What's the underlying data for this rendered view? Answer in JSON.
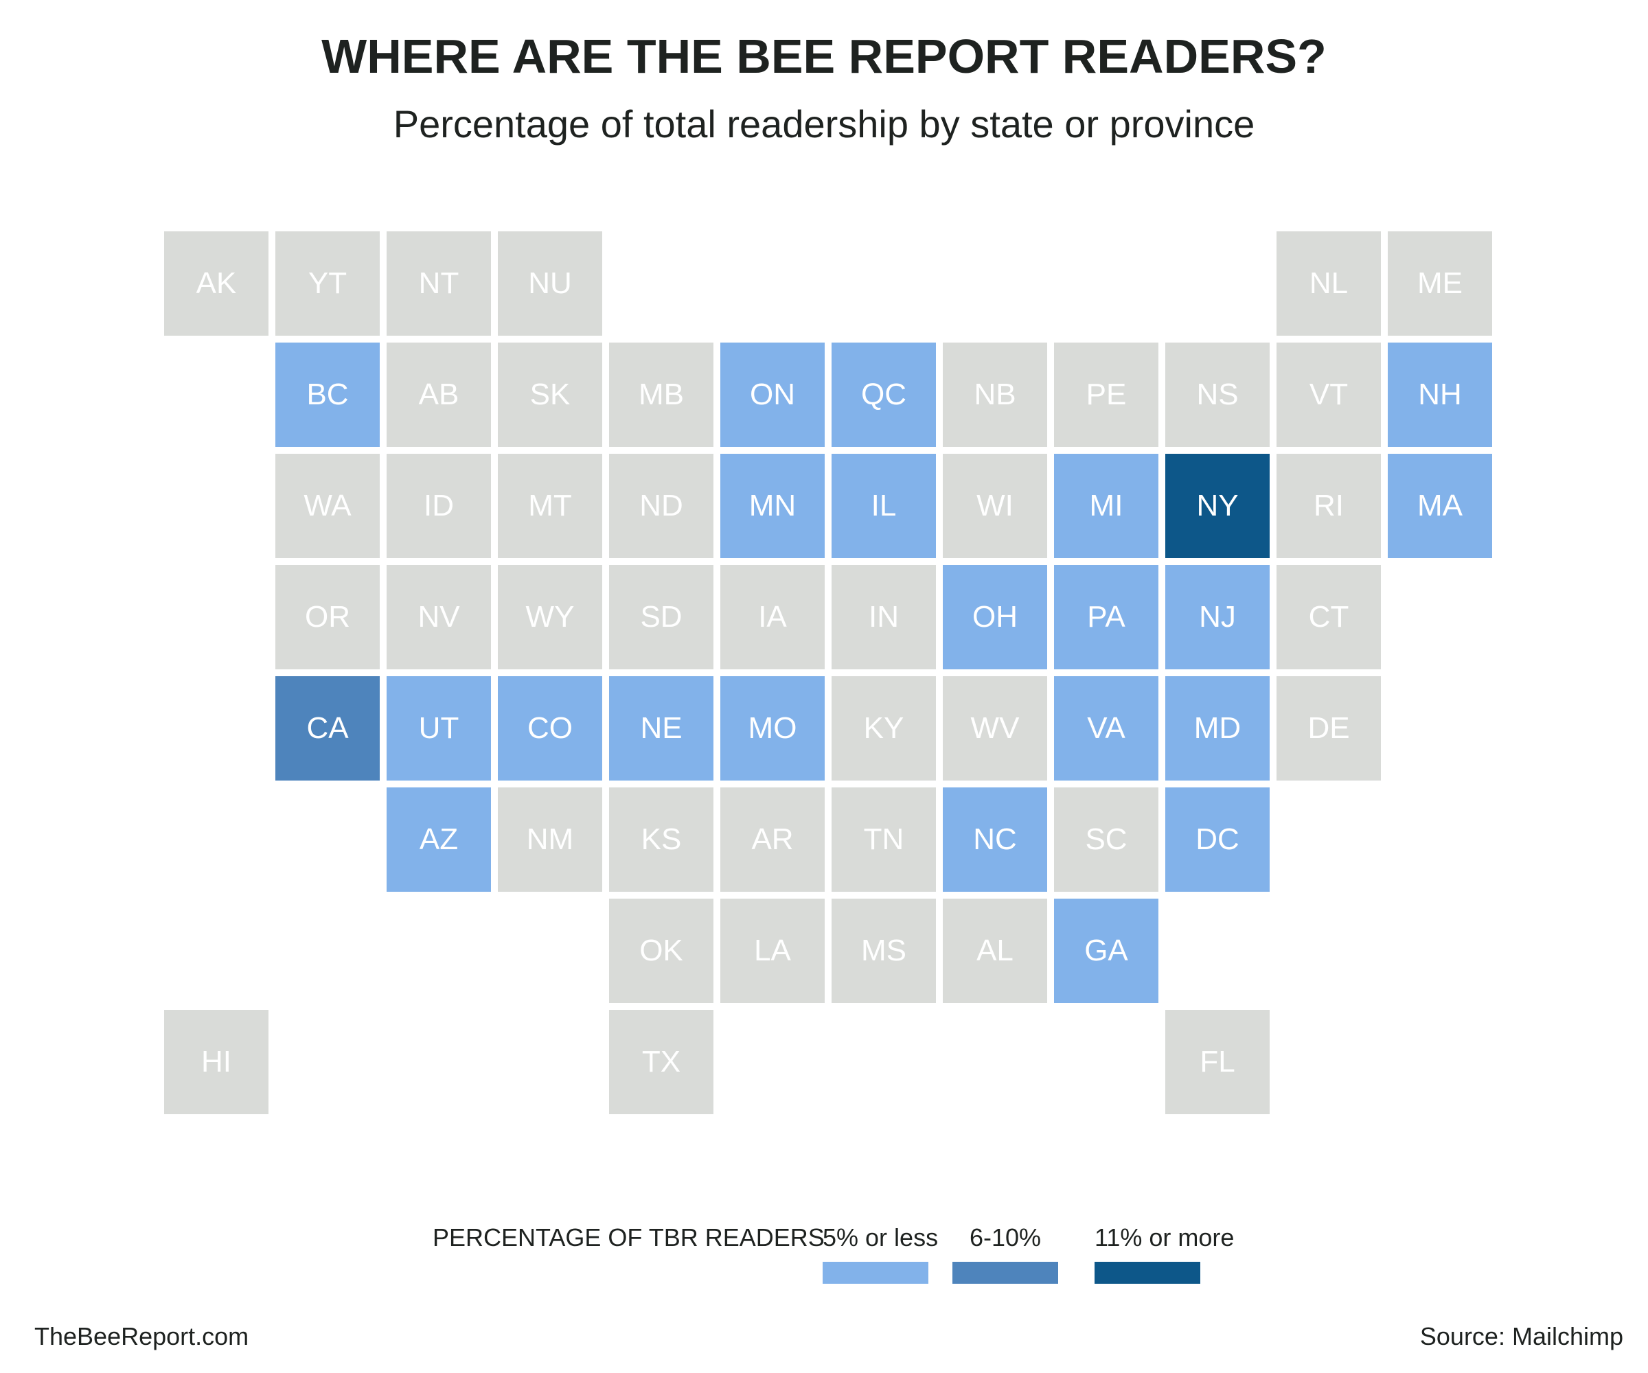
{
  "title": "WHERE ARE THE BEE REPORT READERS?",
  "subtitle": "Percentage of total readership by state or province",
  "colors": {
    "none": "#d9dbd8",
    "low": "#82b2ea",
    "mid": "#4e84bc",
    "high": "#0d5789"
  },
  "tiles": [
    {
      "code": "AK",
      "row": 0,
      "col": 0,
      "level": "none"
    },
    {
      "code": "YT",
      "row": 0,
      "col": 1,
      "level": "none"
    },
    {
      "code": "NT",
      "row": 0,
      "col": 2,
      "level": "none"
    },
    {
      "code": "NU",
      "row": 0,
      "col": 3,
      "level": "none"
    },
    {
      "code": "NL",
      "row": 0,
      "col": 10,
      "level": "none"
    },
    {
      "code": "ME",
      "row": 0,
      "col": 11,
      "level": "none"
    },
    {
      "code": "BC",
      "row": 1,
      "col": 1,
      "level": "low"
    },
    {
      "code": "AB",
      "row": 1,
      "col": 2,
      "level": "none"
    },
    {
      "code": "SK",
      "row": 1,
      "col": 3,
      "level": "none"
    },
    {
      "code": "MB",
      "row": 1,
      "col": 4,
      "level": "none"
    },
    {
      "code": "ON",
      "row": 1,
      "col": 5,
      "level": "low"
    },
    {
      "code": "QC",
      "row": 1,
      "col": 6,
      "level": "low"
    },
    {
      "code": "NB",
      "row": 1,
      "col": 7,
      "level": "none"
    },
    {
      "code": "PE",
      "row": 1,
      "col": 8,
      "level": "none"
    },
    {
      "code": "NS",
      "row": 1,
      "col": 9,
      "level": "none"
    },
    {
      "code": "VT",
      "row": 1,
      "col": 10,
      "level": "none"
    },
    {
      "code": "NH",
      "row": 1,
      "col": 11,
      "level": "low"
    },
    {
      "code": "WA",
      "row": 2,
      "col": 1,
      "level": "none"
    },
    {
      "code": "ID",
      "row": 2,
      "col": 2,
      "level": "none"
    },
    {
      "code": "MT",
      "row": 2,
      "col": 3,
      "level": "none"
    },
    {
      "code": "ND",
      "row": 2,
      "col": 4,
      "level": "none"
    },
    {
      "code": "MN",
      "row": 2,
      "col": 5,
      "level": "low"
    },
    {
      "code": "IL",
      "row": 2,
      "col": 6,
      "level": "low"
    },
    {
      "code": "WI",
      "row": 2,
      "col": 7,
      "level": "none"
    },
    {
      "code": "MI",
      "row": 2,
      "col": 8,
      "level": "low"
    },
    {
      "code": "NY",
      "row": 2,
      "col": 9,
      "level": "high"
    },
    {
      "code": "RI",
      "row": 2,
      "col": 10,
      "level": "none"
    },
    {
      "code": "MA",
      "row": 2,
      "col": 11,
      "level": "low"
    },
    {
      "code": "OR",
      "row": 3,
      "col": 1,
      "level": "none"
    },
    {
      "code": "NV",
      "row": 3,
      "col": 2,
      "level": "none"
    },
    {
      "code": "WY",
      "row": 3,
      "col": 3,
      "level": "none"
    },
    {
      "code": "SD",
      "row": 3,
      "col": 4,
      "level": "none"
    },
    {
      "code": "IA",
      "row": 3,
      "col": 5,
      "level": "none"
    },
    {
      "code": "IN",
      "row": 3,
      "col": 6,
      "level": "none"
    },
    {
      "code": "OH",
      "row": 3,
      "col": 7,
      "level": "low"
    },
    {
      "code": "PA",
      "row": 3,
      "col": 8,
      "level": "low"
    },
    {
      "code": "NJ",
      "row": 3,
      "col": 9,
      "level": "low"
    },
    {
      "code": "CT",
      "row": 3,
      "col": 10,
      "level": "none"
    },
    {
      "code": "CA",
      "row": 4,
      "col": 1,
      "level": "mid"
    },
    {
      "code": "UT",
      "row": 4,
      "col": 2,
      "level": "low"
    },
    {
      "code": "CO",
      "row": 4,
      "col": 3,
      "level": "low"
    },
    {
      "code": "NE",
      "row": 4,
      "col": 4,
      "level": "low"
    },
    {
      "code": "MO",
      "row": 4,
      "col": 5,
      "level": "low"
    },
    {
      "code": "KY",
      "row": 4,
      "col": 6,
      "level": "none"
    },
    {
      "code": "WV",
      "row": 4,
      "col": 7,
      "level": "none"
    },
    {
      "code": "VA",
      "row": 4,
      "col": 8,
      "level": "low"
    },
    {
      "code": "MD",
      "row": 4,
      "col": 9,
      "level": "low"
    },
    {
      "code": "DE",
      "row": 4,
      "col": 10,
      "level": "none"
    },
    {
      "code": "AZ",
      "row": 5,
      "col": 2,
      "level": "low"
    },
    {
      "code": "NM",
      "row": 5,
      "col": 3,
      "level": "none"
    },
    {
      "code": "KS",
      "row": 5,
      "col": 4,
      "level": "none"
    },
    {
      "code": "AR",
      "row": 5,
      "col": 5,
      "level": "none"
    },
    {
      "code": "TN",
      "row": 5,
      "col": 6,
      "level": "none"
    },
    {
      "code": "NC",
      "row": 5,
      "col": 7,
      "level": "low"
    },
    {
      "code": "SC",
      "row": 5,
      "col": 8,
      "level": "none"
    },
    {
      "code": "DC",
      "row": 5,
      "col": 9,
      "level": "low"
    },
    {
      "code": "OK",
      "row": 6,
      "col": 4,
      "level": "none"
    },
    {
      "code": "LA",
      "row": 6,
      "col": 5,
      "level": "none"
    },
    {
      "code": "MS",
      "row": 6,
      "col": 6,
      "level": "none"
    },
    {
      "code": "AL",
      "row": 6,
      "col": 7,
      "level": "none"
    },
    {
      "code": "GA",
      "row": 6,
      "col": 8,
      "level": "low"
    },
    {
      "code": "HI",
      "row": 7,
      "col": 0,
      "level": "none"
    },
    {
      "code": "TX",
      "row": 7,
      "col": 4,
      "level": "none"
    },
    {
      "code": "FL",
      "row": 7,
      "col": 9,
      "level": "none"
    }
  ],
  "legend": {
    "heading": "PERCENTAGE OF TBR READERS",
    "items": [
      {
        "label": "5% or less",
        "level": "low"
      },
      {
        "label": "6-10%",
        "level": "mid"
      },
      {
        "label": "11% or more",
        "level": "high"
      }
    ]
  },
  "footer": {
    "site": "TheBeeReport.com",
    "source": "Source: Mailchimp"
  }
}
